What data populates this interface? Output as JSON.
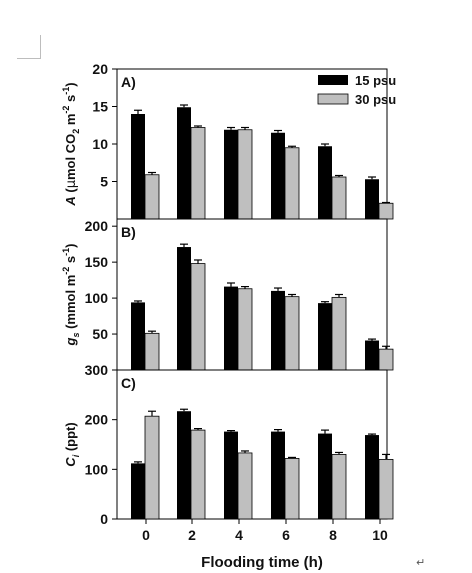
{
  "figure": {
    "return_glyph": "↵"
  },
  "legend": [
    {
      "label": "15 psu",
      "color": "#000000"
    },
    {
      "label": "30 psu",
      "color": "#bfbfbf"
    }
  ],
  "chart_data": [
    {
      "type": "bar",
      "panel_label": "A)",
      "ylabel": {
        "pre": "A (",
        "mu": "μ",
        "mid": "mol CO",
        "sub": "2",
        "mid2": " m",
        "sup1": "-2",
        "s": " s",
        "sup2": "-1",
        "post": ")"
      },
      "ylim": [
        0,
        20
      ],
      "yticks": [
        5,
        10,
        15,
        20
      ],
      "categories": [
        "0",
        "2",
        "4",
        "6",
        "8",
        "10"
      ],
      "series": [
        {
          "name": "15 psu",
          "values": [
            14.0,
            14.9,
            11.9,
            11.5,
            9.7,
            5.3
          ],
          "errors": [
            0.5,
            0.3,
            0.3,
            0.3,
            0.3,
            0.3
          ]
        },
        {
          "name": "30 psu",
          "values": [
            5.9,
            12.2,
            11.9,
            9.5,
            5.6,
            2.1
          ],
          "errors": [
            0.3,
            0.2,
            0.3,
            0.2,
            0.2,
            0.1
          ]
        }
      ]
    },
    {
      "type": "bar",
      "panel_label": "B)",
      "ylabel": {
        "pre": "g",
        "sub": "s",
        "mid": " (mmol m",
        "sup1": "-2",
        "s": " s",
        "sup2": "-1",
        "post": ")"
      },
      "ylim": [
        0,
        210
      ],
      "yticks": [
        50,
        100,
        150,
        200
      ],
      "categories": [
        "0",
        "2",
        "4",
        "6",
        "8",
        "10"
      ],
      "series": [
        {
          "name": "15 psu",
          "values": [
            94,
            171,
            116,
            110,
            93,
            41
          ],
          "errors": [
            2,
            4,
            5,
            4,
            2,
            2
          ]
        },
        {
          "name": "30 psu",
          "values": [
            51,
            148,
            113,
            102,
            101,
            29
          ],
          "errors": [
            3,
            5,
            3,
            3,
            4,
            4
          ]
        }
      ]
    },
    {
      "type": "bar",
      "panel_label": "C)",
      "ylabel": {
        "pre": "C",
        "sub": "i",
        "mid": " (ppt)"
      },
      "ylim": [
        0,
        300
      ],
      "yticks": [
        0,
        100,
        200,
        300
      ],
      "xlabel": "Flooding time (h)",
      "categories": [
        "0",
        "2",
        "4",
        "6",
        "8",
        "10"
      ],
      "series": [
        {
          "name": "15 psu",
          "values": [
            112,
            217,
            176,
            176,
            172,
            169
          ],
          "errors": [
            3,
            4,
            2,
            4,
            7,
            2
          ]
        },
        {
          "name": "30 psu",
          "values": [
            207,
            179,
            133,
            122,
            130,
            120
          ],
          "errors": [
            10,
            3,
            4,
            2,
            4,
            10
          ]
        }
      ]
    }
  ]
}
